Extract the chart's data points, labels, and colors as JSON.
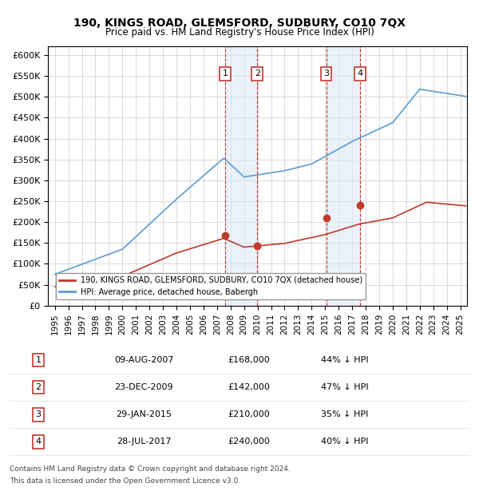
{
  "title": "190, KINGS ROAD, GLEMSFORD, SUDBURY, CO10 7QX",
  "subtitle": "Price paid vs. HM Land Registry's House Price Index (HPI)",
  "yticks": [
    0,
    50000,
    100000,
    150000,
    200000,
    250000,
    300000,
    350000,
    400000,
    450000,
    500000,
    550000,
    600000
  ],
  "xlim_start": 1994.5,
  "xlim_end": 2025.5,
  "ylim": [
    0,
    620000
  ],
  "sale_dates_num": [
    2007.6,
    2009.98,
    2015.08,
    2017.58
  ],
  "sale_prices": [
    168000,
    142000,
    210000,
    240000
  ],
  "sale_labels": [
    "1",
    "2",
    "3",
    "4"
  ],
  "sale_date_strs": [
    "09-AUG-2007",
    "23-DEC-2009",
    "29-JAN-2015",
    "28-JUL-2017"
  ],
  "sale_price_strs": [
    "£168,000",
    "£142,000",
    "£210,000",
    "£240,000"
  ],
  "sale_pct_strs": [
    "44% ↓ HPI",
    "47% ↓ HPI",
    "35% ↓ HPI",
    "40% ↓ HPI"
  ],
  "hpi_color": "#5b9bd5",
  "price_color": "#c0392b",
  "sale_box_color": "#c0392b",
  "shade_color": "#dce9f5",
  "legend_line1": "190, KINGS ROAD, GLEMSFORD, SUDBURY, CO10 7QX (detached house)",
  "legend_line2": "HPI: Average price, detached house, Babergh",
  "footer1": "Contains HM Land Registry data © Crown copyright and database right 2024.",
  "footer2": "This data is licensed under the Open Government Licence v3.0."
}
